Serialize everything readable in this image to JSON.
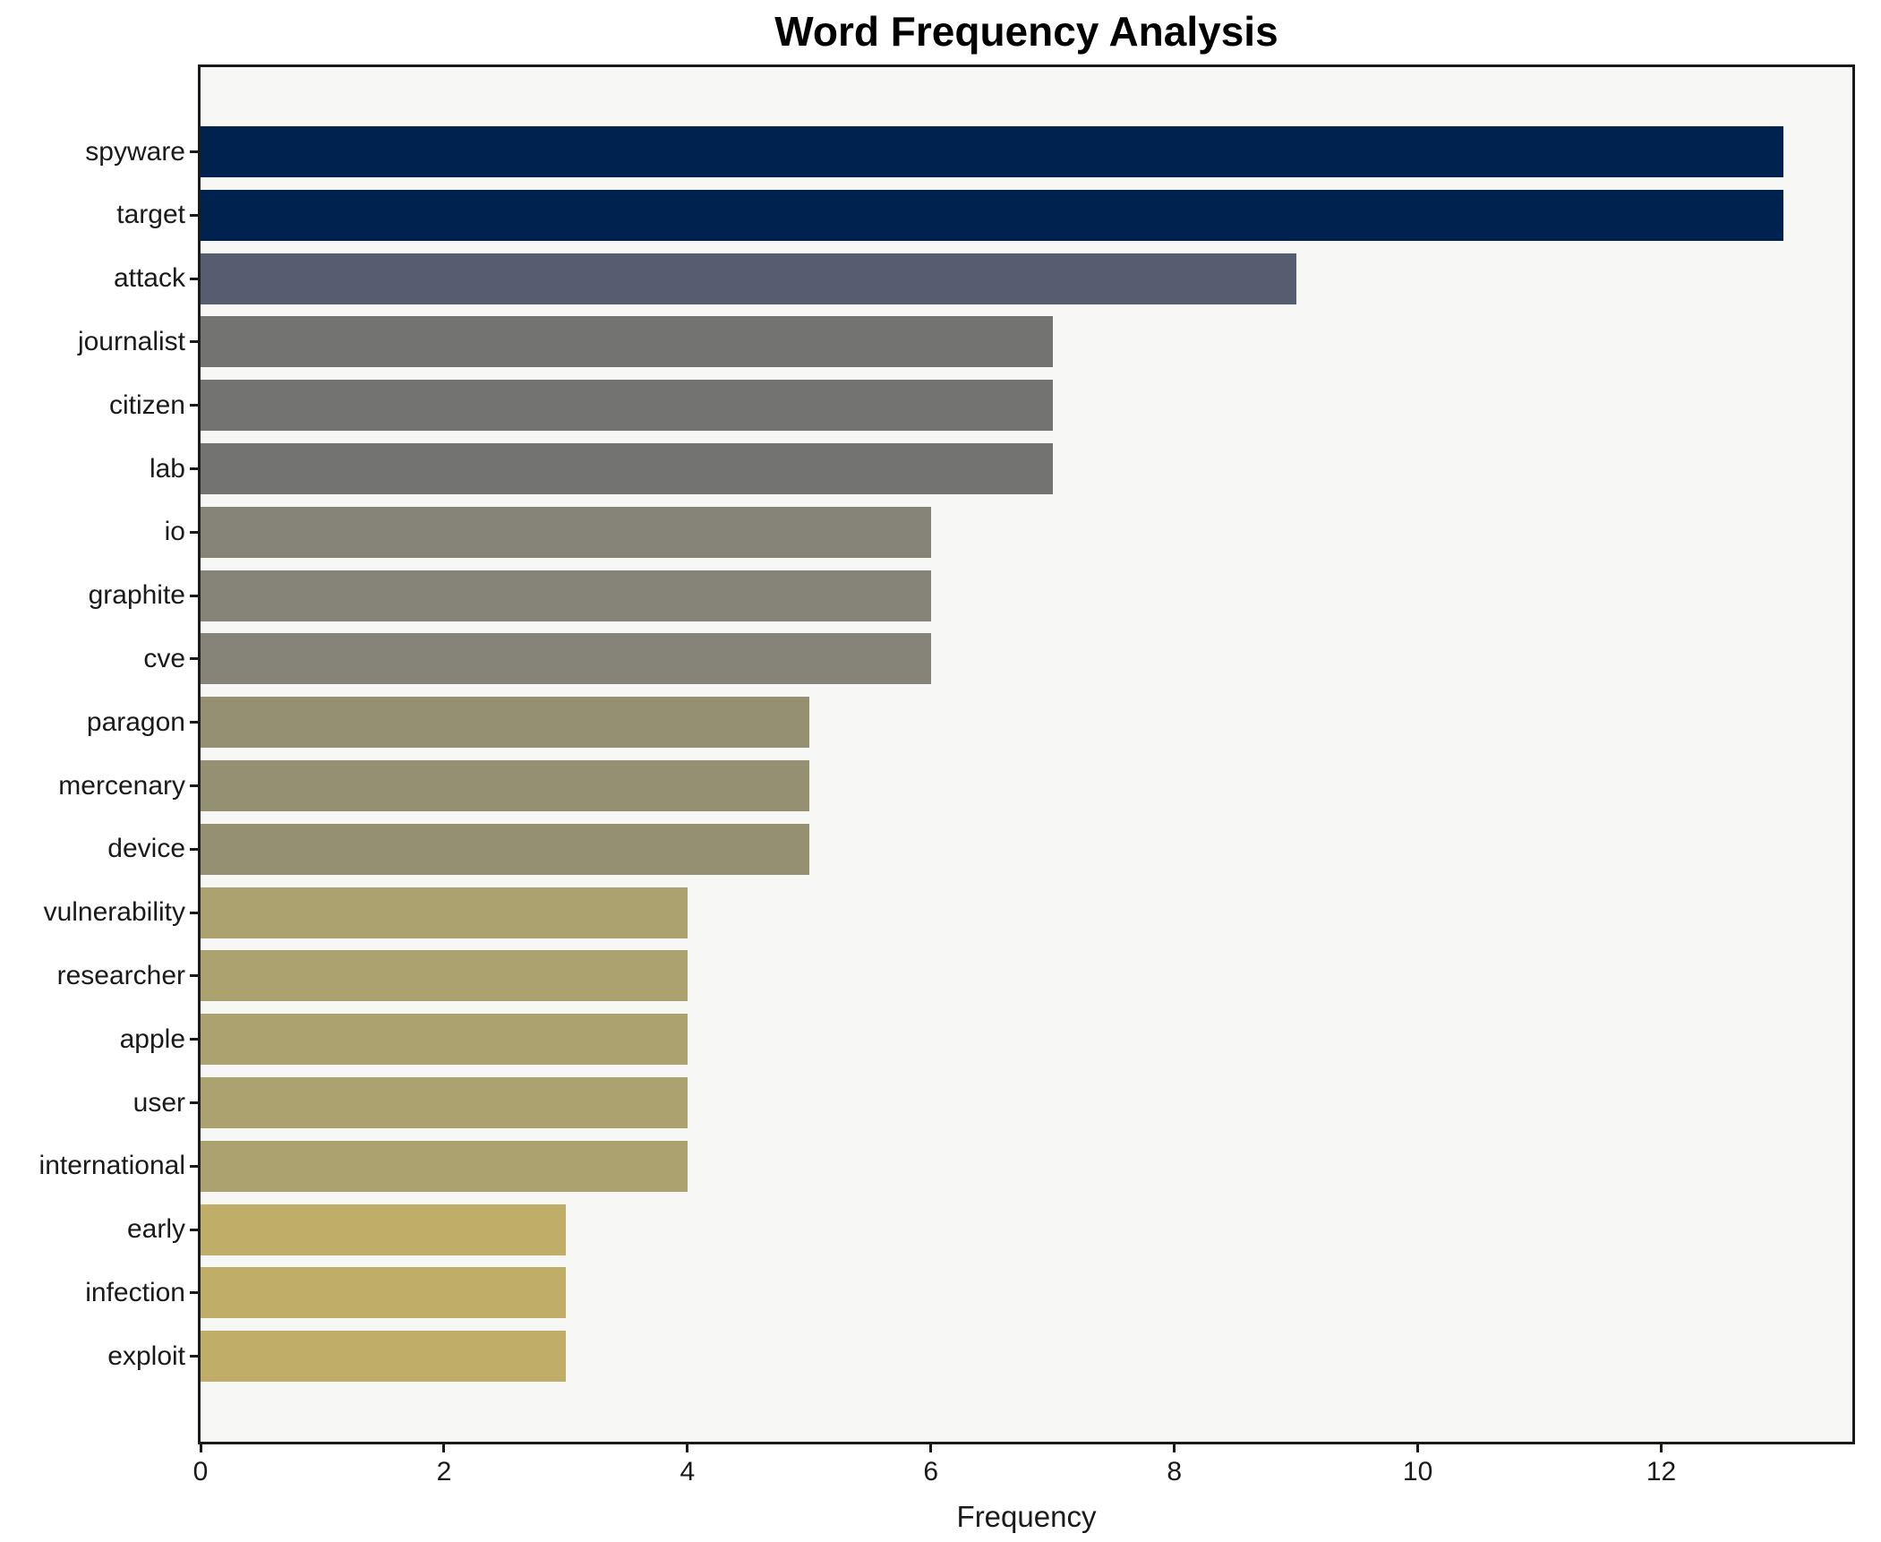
{
  "title": "Word Frequency Analysis",
  "chart_data": {
    "type": "bar",
    "orientation": "horizontal",
    "title": "Word Frequency Analysis",
    "xlabel": "Frequency",
    "ylabel": "",
    "grid": false,
    "plot_background": "#f7f7f5",
    "xlim": [
      0,
      13.57
    ],
    "x_ticks": [
      0,
      2,
      4,
      6,
      8,
      10,
      12
    ],
    "categories": [
      "spyware",
      "target",
      "attack",
      "journalist",
      "citizen",
      "lab",
      "io",
      "graphite",
      "cve",
      "paragon",
      "mercenary",
      "device",
      "vulnerability",
      "researcher",
      "apple",
      "user",
      "international",
      "early",
      "infection",
      "exploit"
    ],
    "values": [
      13,
      13,
      9,
      7,
      7,
      7,
      6,
      6,
      6,
      5,
      5,
      5,
      4,
      4,
      4,
      4,
      4,
      3,
      3,
      3
    ],
    "bar_colors": [
      "#00224e",
      "#00224e",
      "#565d71",
      "#737372",
      "#737372",
      "#737372",
      "#868379",
      "#868379",
      "#868379",
      "#969072",
      "#969072",
      "#969072",
      "#aca26f",
      "#aca26f",
      "#aca26f",
      "#aca26f",
      "#aca26f",
      "#c0ae68",
      "#c0ae68",
      "#c0ae68"
    ],
    "axis_color": "#1a1a1a",
    "title_color": "#000000"
  }
}
